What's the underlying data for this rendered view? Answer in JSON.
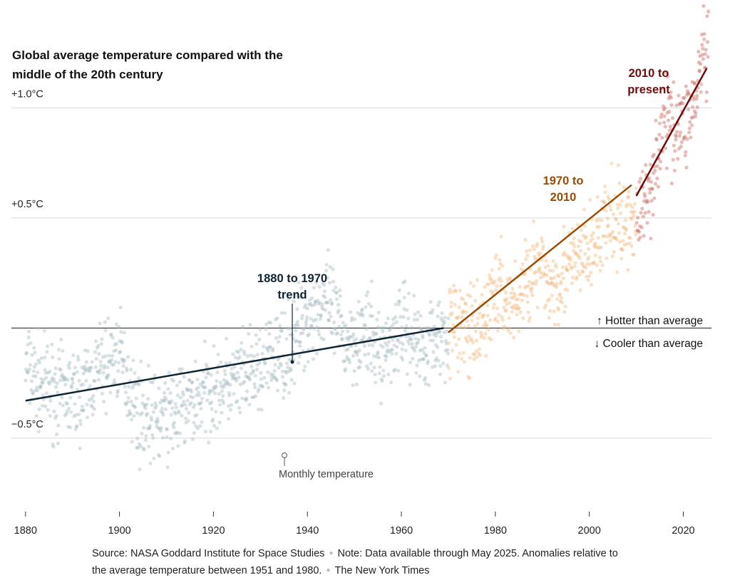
{
  "chart_data": {
    "type": "scatter",
    "title": "Global average temperature compared with the middle of the 20th century",
    "y_ticks": [
      {
        "value": 1.0,
        "label": "+1.0°C"
      },
      {
        "value": 0.5,
        "label": "+0.5°C"
      },
      {
        "value": -0.5,
        "label": "−0.5°C"
      }
    ],
    "x_ticks": [
      1880,
      1900,
      1920,
      1940,
      1960,
      1980,
      2000,
      2020
    ],
    "xlim": [
      1877,
      2026
    ],
    "ylim": [
      -0.84,
      1.49
    ],
    "grid": true,
    "baseline_labels": {
      "hotter": "Hotter than average",
      "cooler": "Cooler than average"
    },
    "series": [
      {
        "name": "Monthly temperature",
        "color": "#a9bcc4",
        "period": [
          1880,
          1970
        ]
      },
      {
        "color": "#f2bc86",
        "period": [
          1970,
          2010
        ]
      },
      {
        "color": "#c96a64",
        "period": [
          2010,
          2025.4
        ]
      }
    ],
    "trends": [
      {
        "label_lines": [
          "1880 to 1970",
          "trend"
        ],
        "color": "#0f2433",
        "start": [
          1880,
          -0.33
        ],
        "end": [
          1969,
          0.0
        ]
      },
      {
        "label_lines": [
          "1970 to",
          "2010"
        ],
        "color": "#9b4a00",
        "start": [
          1970,
          -0.02
        ],
        "end": [
          2009,
          0.65
        ]
      },
      {
        "label_lines": [
          "2010 to",
          "present"
        ],
        "color": "#6e0c0c",
        "start": [
          2010,
          0.6
        ],
        "end": [
          2025,
          1.18
        ]
      }
    ],
    "annotation": "Monthly temperature",
    "monthly_anchors": [
      [
        1880,
        -0.18
      ],
      [
        1884,
        -0.26
      ],
      [
        1888,
        -0.3
      ],
      [
        1892,
        -0.3
      ],
      [
        1896,
        -0.18
      ],
      [
        1900,
        -0.12
      ],
      [
        1904,
        -0.38
      ],
      [
        1908,
        -0.42
      ],
      [
        1912,
        -0.38
      ],
      [
        1916,
        -0.34
      ],
      [
        1920,
        -0.26
      ],
      [
        1924,
        -0.26
      ],
      [
        1928,
        -0.22
      ],
      [
        1932,
        -0.15
      ],
      [
        1936,
        -0.1
      ],
      [
        1940,
        0.04
      ],
      [
        1944,
        0.12
      ],
      [
        1948,
        -0.06
      ],
      [
        1952,
        -0.02
      ],
      [
        1956,
        -0.12
      ],
      [
        1960,
        0.02
      ],
      [
        1964,
        -0.08
      ],
      [
        1968,
        -0.03
      ],
      [
        1972,
        0.02
      ],
      [
        1976,
        -0.05
      ],
      [
        1980,
        0.18
      ],
      [
        1984,
        0.1
      ],
      [
        1988,
        0.28
      ],
      [
        1992,
        0.2
      ],
      [
        1996,
        0.28
      ],
      [
        2000,
        0.34
      ],
      [
        2004,
        0.48
      ],
      [
        2008,
        0.46
      ],
      [
        2012,
        0.56
      ],
      [
        2016,
        0.94
      ],
      [
        2020,
        0.92
      ],
      [
        2023,
        1.06
      ],
      [
        2024,
        1.25
      ],
      [
        2025.4,
        1.2
      ]
    ]
  },
  "footer": {
    "source": "Source: NASA Goddard Institute for Space Studies",
    "note": "Note: Data available through May 2025. Anomalies relative to the average temperature between 1951 and 1980.",
    "credit": "The New York Times"
  },
  "colors": {
    "grid": "#d9d9d9",
    "baseline": "#333333",
    "text": "#121212"
  }
}
